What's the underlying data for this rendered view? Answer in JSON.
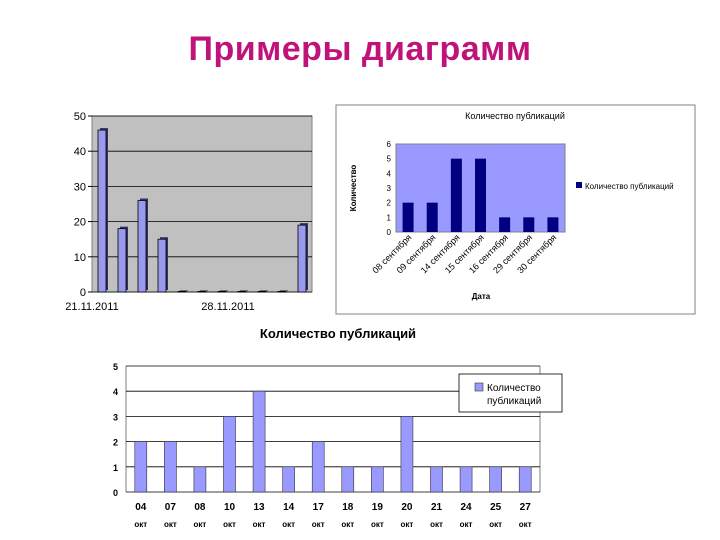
{
  "title": "Примеры диаграмм",
  "chart_data": [
    {
      "type": "bar",
      "title": "",
      "xlabel": "",
      "ylabel": "",
      "ylim": [
        0,
        50
      ],
      "yticks": [
        "0",
        "10",
        "20",
        "30",
        "40",
        "50"
      ],
      "x_tick_labels": [
        "21.11.2011",
        "28.11.2011"
      ],
      "values": [
        46,
        18,
        26,
        15,
        0,
        0,
        0,
        0,
        0,
        0,
        19
      ],
      "bar_color": "#9999ee",
      "plot_bg": "#c0c0c0",
      "grid": true,
      "legend": "none"
    },
    {
      "type": "bar",
      "title": "Количество публикаций",
      "xlabel": "Дата",
      "ylabel": "Количество",
      "ylim": [
        0,
        6
      ],
      "yticks": [
        "0",
        "1",
        "2",
        "3",
        "4",
        "5",
        "6"
      ],
      "categories": [
        "08 сентября",
        "09 сентября",
        "14 сентября",
        "15 сентября",
        "16 сентября",
        "29 сентября",
        "30 сентября"
      ],
      "values": [
        2,
        2,
        5,
        5,
        1,
        1,
        1
      ],
      "series": [
        {
          "name": "Количество публикаций",
          "values": [
            2,
            2,
            5,
            5,
            1,
            1,
            1
          ]
        }
      ],
      "bar_color": "#000080",
      "plot_bg": "#9999ff",
      "legend": "right"
    },
    {
      "type": "bar",
      "title": "Количество публикаций",
      "ylim": [
        0,
        5
      ],
      "yticks": [
        "0",
        "1",
        "2",
        "3",
        "4",
        "5"
      ],
      "categories": [
        "04",
        "07",
        "08",
        "10",
        "13",
        "14",
        "17",
        "18",
        "19",
        "20",
        "21",
        "24",
        "25",
        "27"
      ],
      "sublabels": [
        "окт",
        "окт",
        "окт",
        "окт",
        "окт",
        "окт",
        "окт",
        "окт",
        "окт",
        "окт",
        "окт",
        "окт",
        "окт",
        "окт"
      ],
      "values": [
        2,
        2,
        1,
        3,
        4,
        1,
        2,
        1,
        1,
        3,
        1,
        1,
        1,
        1
      ],
      "series": [
        {
          "name": "Количество публикаций",
          "values": [
            2,
            2,
            1,
            3,
            4,
            1,
            2,
            1,
            1,
            3,
            1,
            1,
            1,
            1
          ]
        }
      ],
      "bar_color": "#9999ff",
      "legend": "top-right",
      "grid": true
    }
  ]
}
